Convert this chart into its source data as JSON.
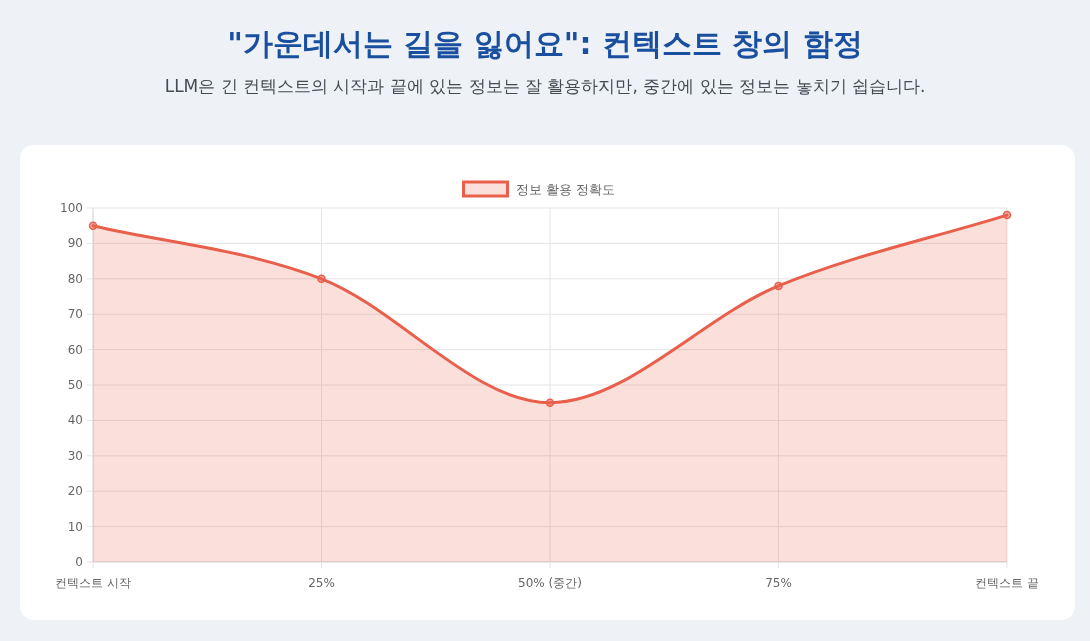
{
  "chart_data": {
    "type": "area",
    "title": "\"가운데서는 길을 잃어요\": 컨텍스트 창의 함정",
    "subtitle": "LLM은 긴 컨텍스트의 시작과 끝에 있는 정보는 잘 활용하지만, 중간에 있는 정보는 놓치기 쉽습니다.",
    "categories": [
      "컨텍스트 시작",
      "25%",
      "50% (중간)",
      "75%",
      "컨텍스트 끝"
    ],
    "series": [
      {
        "name": "정보 활용 정확도",
        "color": "#e8604c",
        "values": [
          95,
          80,
          45,
          78,
          98
        ]
      }
    ],
    "ylim": [
      0,
      100
    ],
    "yticks": [
      0,
      10,
      20,
      30,
      40,
      50,
      60,
      70,
      80,
      90,
      100
    ],
    "grid": true,
    "legend": "top",
    "marker": "circle"
  }
}
